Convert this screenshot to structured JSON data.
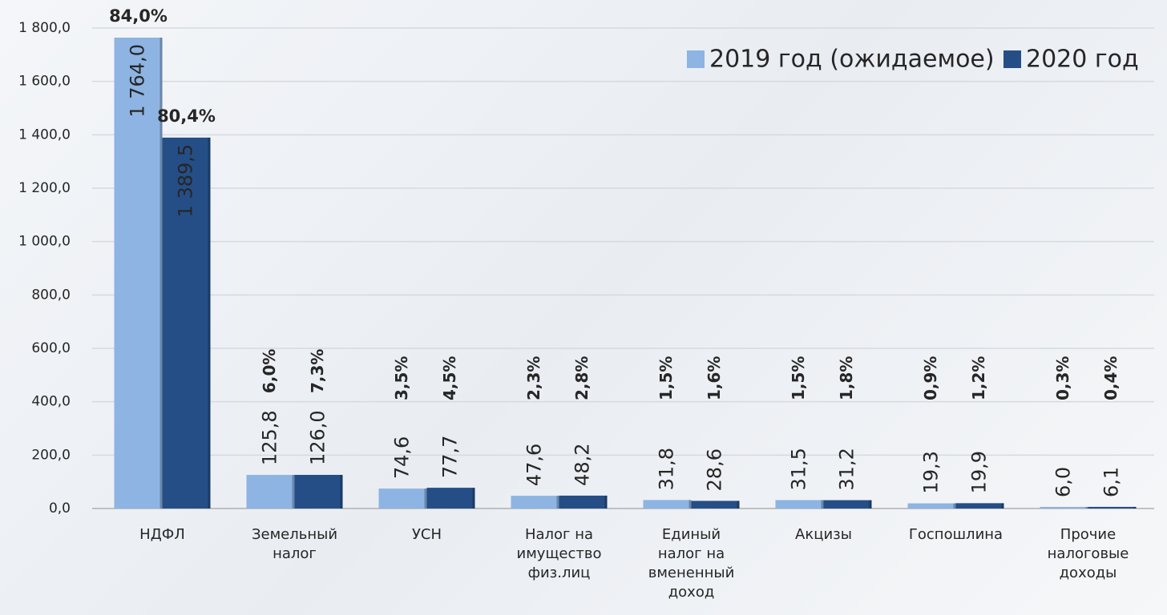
{
  "chart_data": {
    "type": "bar",
    "categories": [
      [
        "НДФЛ"
      ],
      [
        "Земельный",
        "налог"
      ],
      [
        "УСН"
      ],
      [
        "Налог на",
        "имущество",
        "физ.лиц"
      ],
      [
        "Единый",
        "налог на",
        "вмененный",
        "доход"
      ],
      [
        "Акцизы"
      ],
      [
        "Госпошлина"
      ],
      [
        "Прочие",
        "налоговые",
        "доходы"
      ]
    ],
    "series": [
      {
        "name": "2019 год (ожидаемое)",
        "color": "#8db4e2",
        "label_color": "#5b8fd6",
        "values": [
          1764.0,
          125.8,
          74.6,
          47.6,
          31.8,
          31.5,
          19.3,
          6.0
        ],
        "value_labels": [
          "1 764,0",
          "125,8",
          "74,6",
          "47,6",
          "31,8",
          "31,5",
          "19,3",
          "6,0"
        ],
        "share_labels": [
          "84,0%",
          "6,0%",
          "3,5%",
          "2,3%",
          "1,5%",
          "1,5%",
          "0,9%",
          "0,3%"
        ]
      },
      {
        "name": "2020 год",
        "color": "#254e86",
        "label_color": "#1f3f73",
        "values": [
          1389.5,
          126.0,
          77.7,
          48.2,
          28.6,
          31.2,
          19.9,
          6.1
        ],
        "value_labels": [
          "1 389,5",
          "126,0",
          "77,7",
          "48,2",
          "28,6",
          "31,2",
          "19,9",
          "6,1"
        ],
        "share_labels": [
          "80,4%",
          "7,3%",
          "4,5%",
          "2,8%",
          "1,6%",
          "1,8%",
          "1,2%",
          "0,4%"
        ]
      }
    ],
    "ylim": [
      0,
      1800
    ],
    "yticks": [
      {
        "value": 0,
        "label": "0,0"
      },
      {
        "value": 200,
        "label": "200,0"
      },
      {
        "value": 400,
        "label": "400,0"
      },
      {
        "value": 600,
        "label": "600,0"
      },
      {
        "value": 800,
        "label": "800,0"
      },
      {
        "value": 1000,
        "label": "1 000,0"
      },
      {
        "value": 1200,
        "label": "1 200,0"
      },
      {
        "value": 1400,
        "label": "1 400,0"
      },
      {
        "value": 1600,
        "label": "1 600,0"
      },
      {
        "value": 1800,
        "label": "1 800,0"
      }
    ],
    "grid": true,
    "legend": "top-right"
  }
}
